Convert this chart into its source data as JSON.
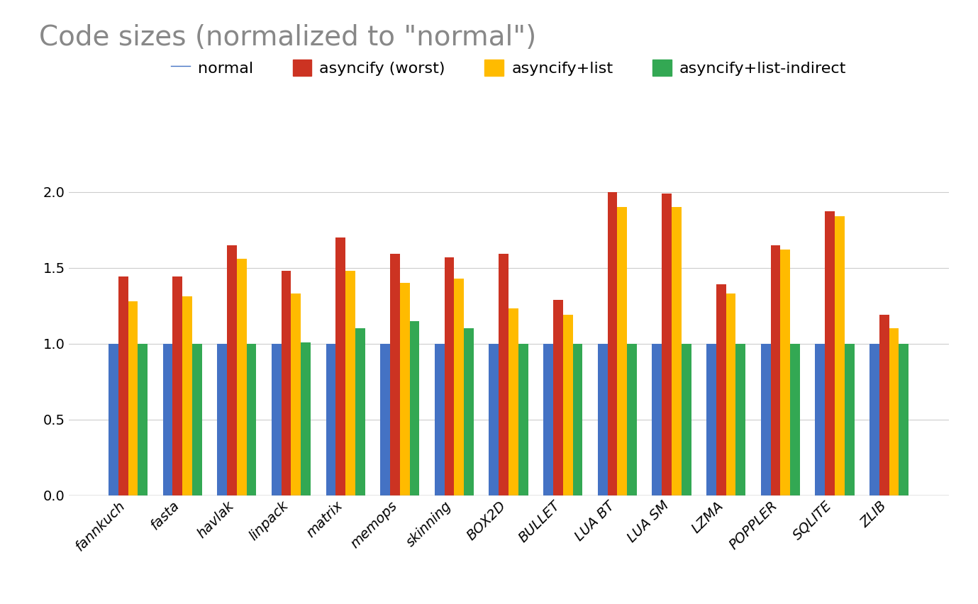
{
  "title": "Code sizes (normalized to \"normal\")",
  "categories": [
    "fannkuch",
    "fasta",
    "havlak",
    "linpack",
    "matrix",
    "memops",
    "skinning",
    "BOX2D",
    "BULLET",
    "LUA BT",
    "LUA SM",
    "LZMA",
    "POPPLER",
    "SQLITE",
    "ZLIB"
  ],
  "series": {
    "normal": [
      1.0,
      1.0,
      1.0,
      1.0,
      1.0,
      1.0,
      1.0,
      1.0,
      1.0,
      1.0,
      1.0,
      1.0,
      1.0,
      1.0,
      1.0
    ],
    "asyncify (worst)": [
      1.44,
      1.44,
      1.65,
      1.48,
      1.7,
      1.59,
      1.57,
      1.59,
      1.29,
      2.0,
      1.99,
      1.39,
      1.65,
      1.87,
      1.19
    ],
    "asyncify+list": [
      1.28,
      1.31,
      1.56,
      1.33,
      1.48,
      1.4,
      1.43,
      1.23,
      1.19,
      1.9,
      1.9,
      1.33,
      1.62,
      1.84,
      1.1
    ],
    "asyncify+list-indirect": [
      1.0,
      1.0,
      1.0,
      1.01,
      1.1,
      1.15,
      1.1,
      1.0,
      1.0,
      1.0,
      1.0,
      1.0,
      1.0,
      1.0,
      1.0
    ]
  },
  "colors": {
    "normal": "#4472C4",
    "asyncify (worst)": "#CC3322",
    "asyncify+list": "#FFBB00",
    "asyncify+list-indirect": "#33A853"
  },
  "legend_labels": [
    "normal",
    "asyncify (worst)",
    "asyncify+list",
    "asyncify+list-indirect"
  ],
  "ylim": [
    0,
    2.15
  ],
  "yticks": [
    0,
    0.5,
    1.0,
    1.5,
    2.0
  ],
  "background_color": "#ffffff",
  "title_fontsize": 28,
  "tick_fontsize": 14,
  "legend_fontsize": 16
}
